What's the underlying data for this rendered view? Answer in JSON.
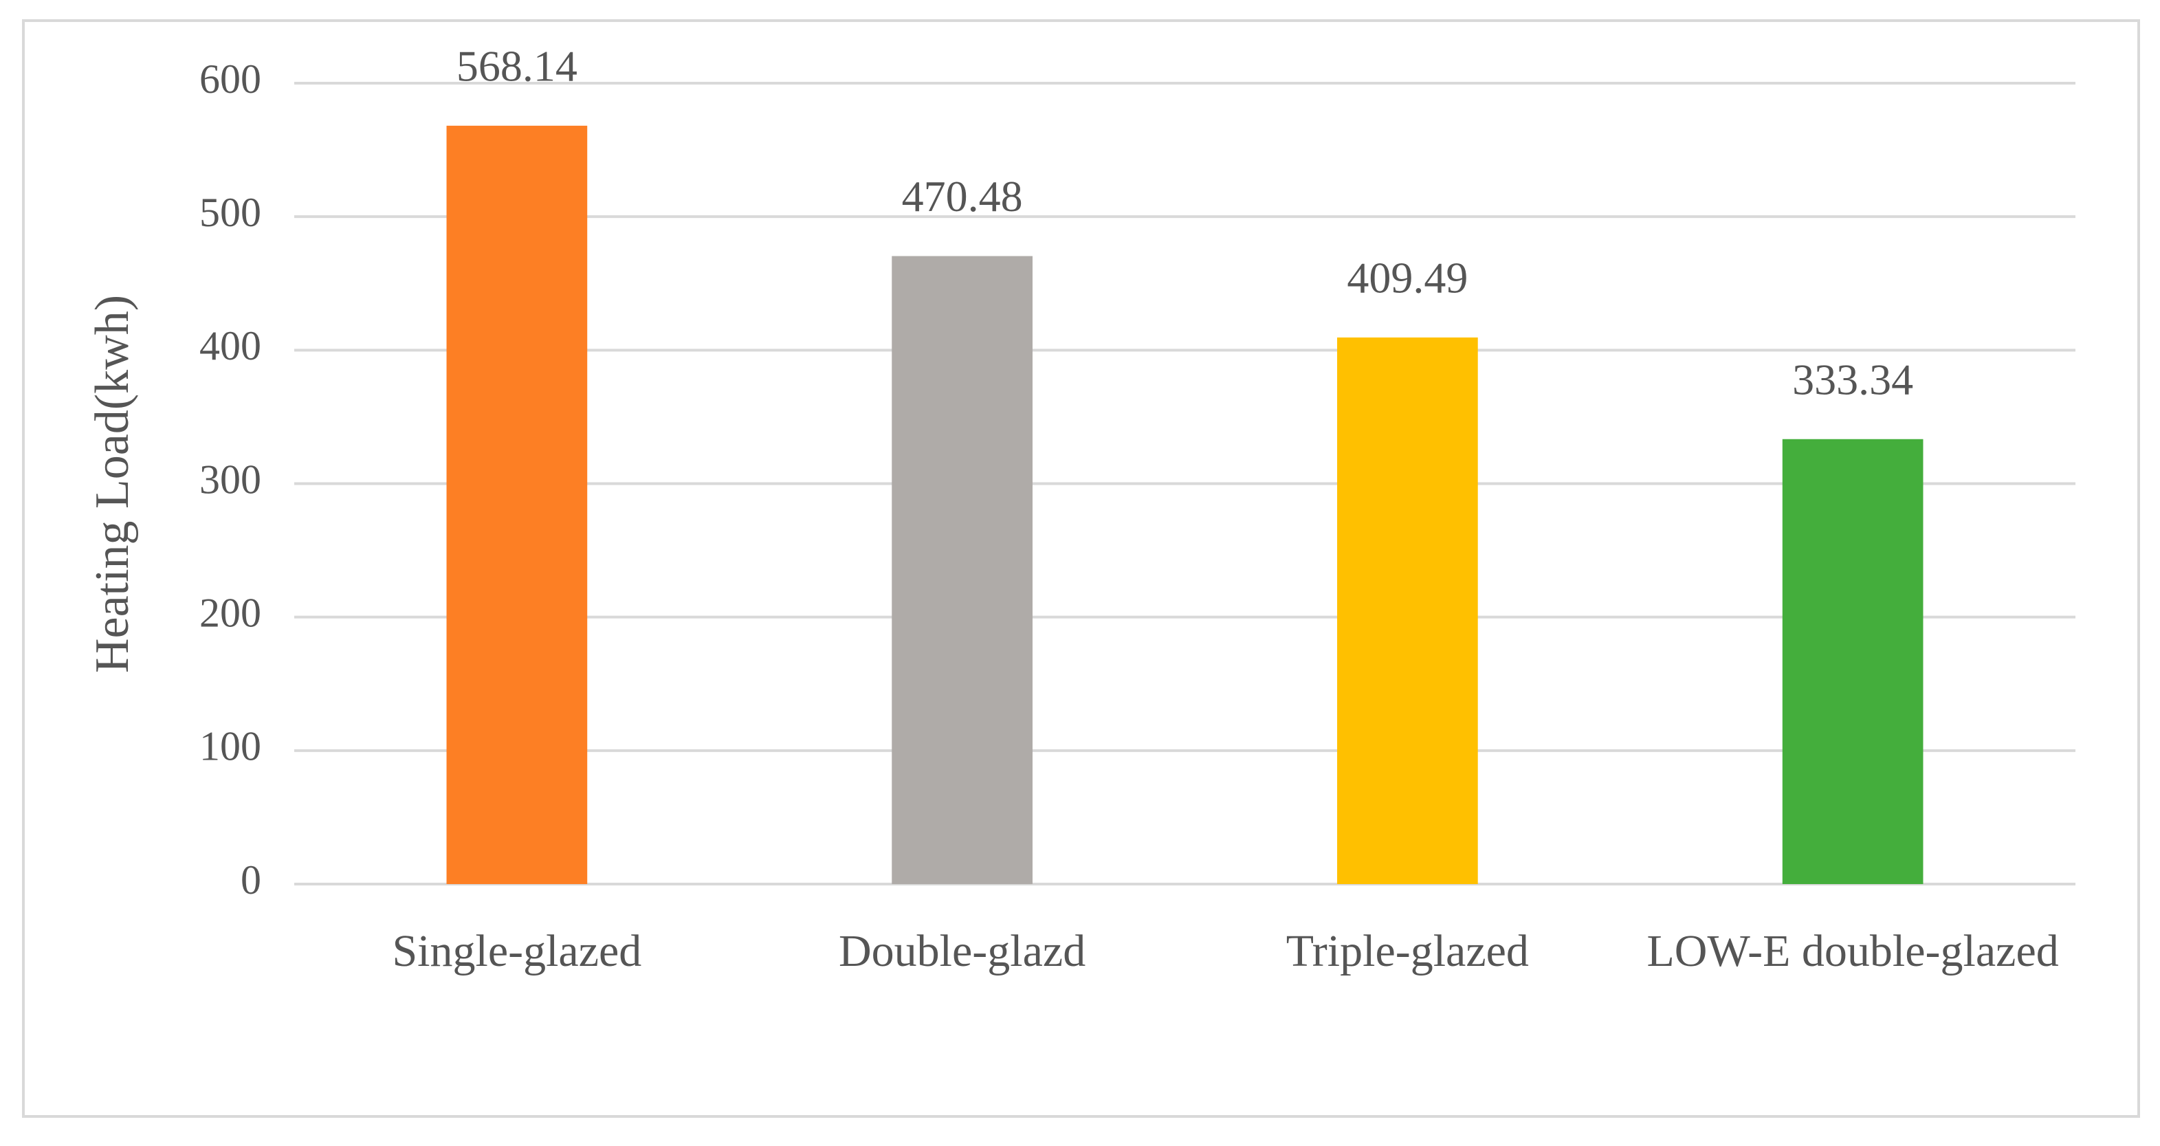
{
  "chart_data": {
    "type": "bar",
    "y_label": "Heating Load(kwh)",
    "categories": [
      "Single-glazed",
      "Double-glazd",
      "Triple-glazed",
      "LOW-E double-glazed"
    ],
    "values": [
      568.14,
      470.48,
      409.49,
      333.34
    ],
    "colors": [
      "#fd7f24",
      "#afaba8",
      "#ffc000",
      "#44ae3c"
    ],
    "ylim": [
      0,
      600
    ],
    "yticks": [
      0,
      100,
      200,
      300,
      400,
      500,
      600
    ],
    "grid": true
  }
}
